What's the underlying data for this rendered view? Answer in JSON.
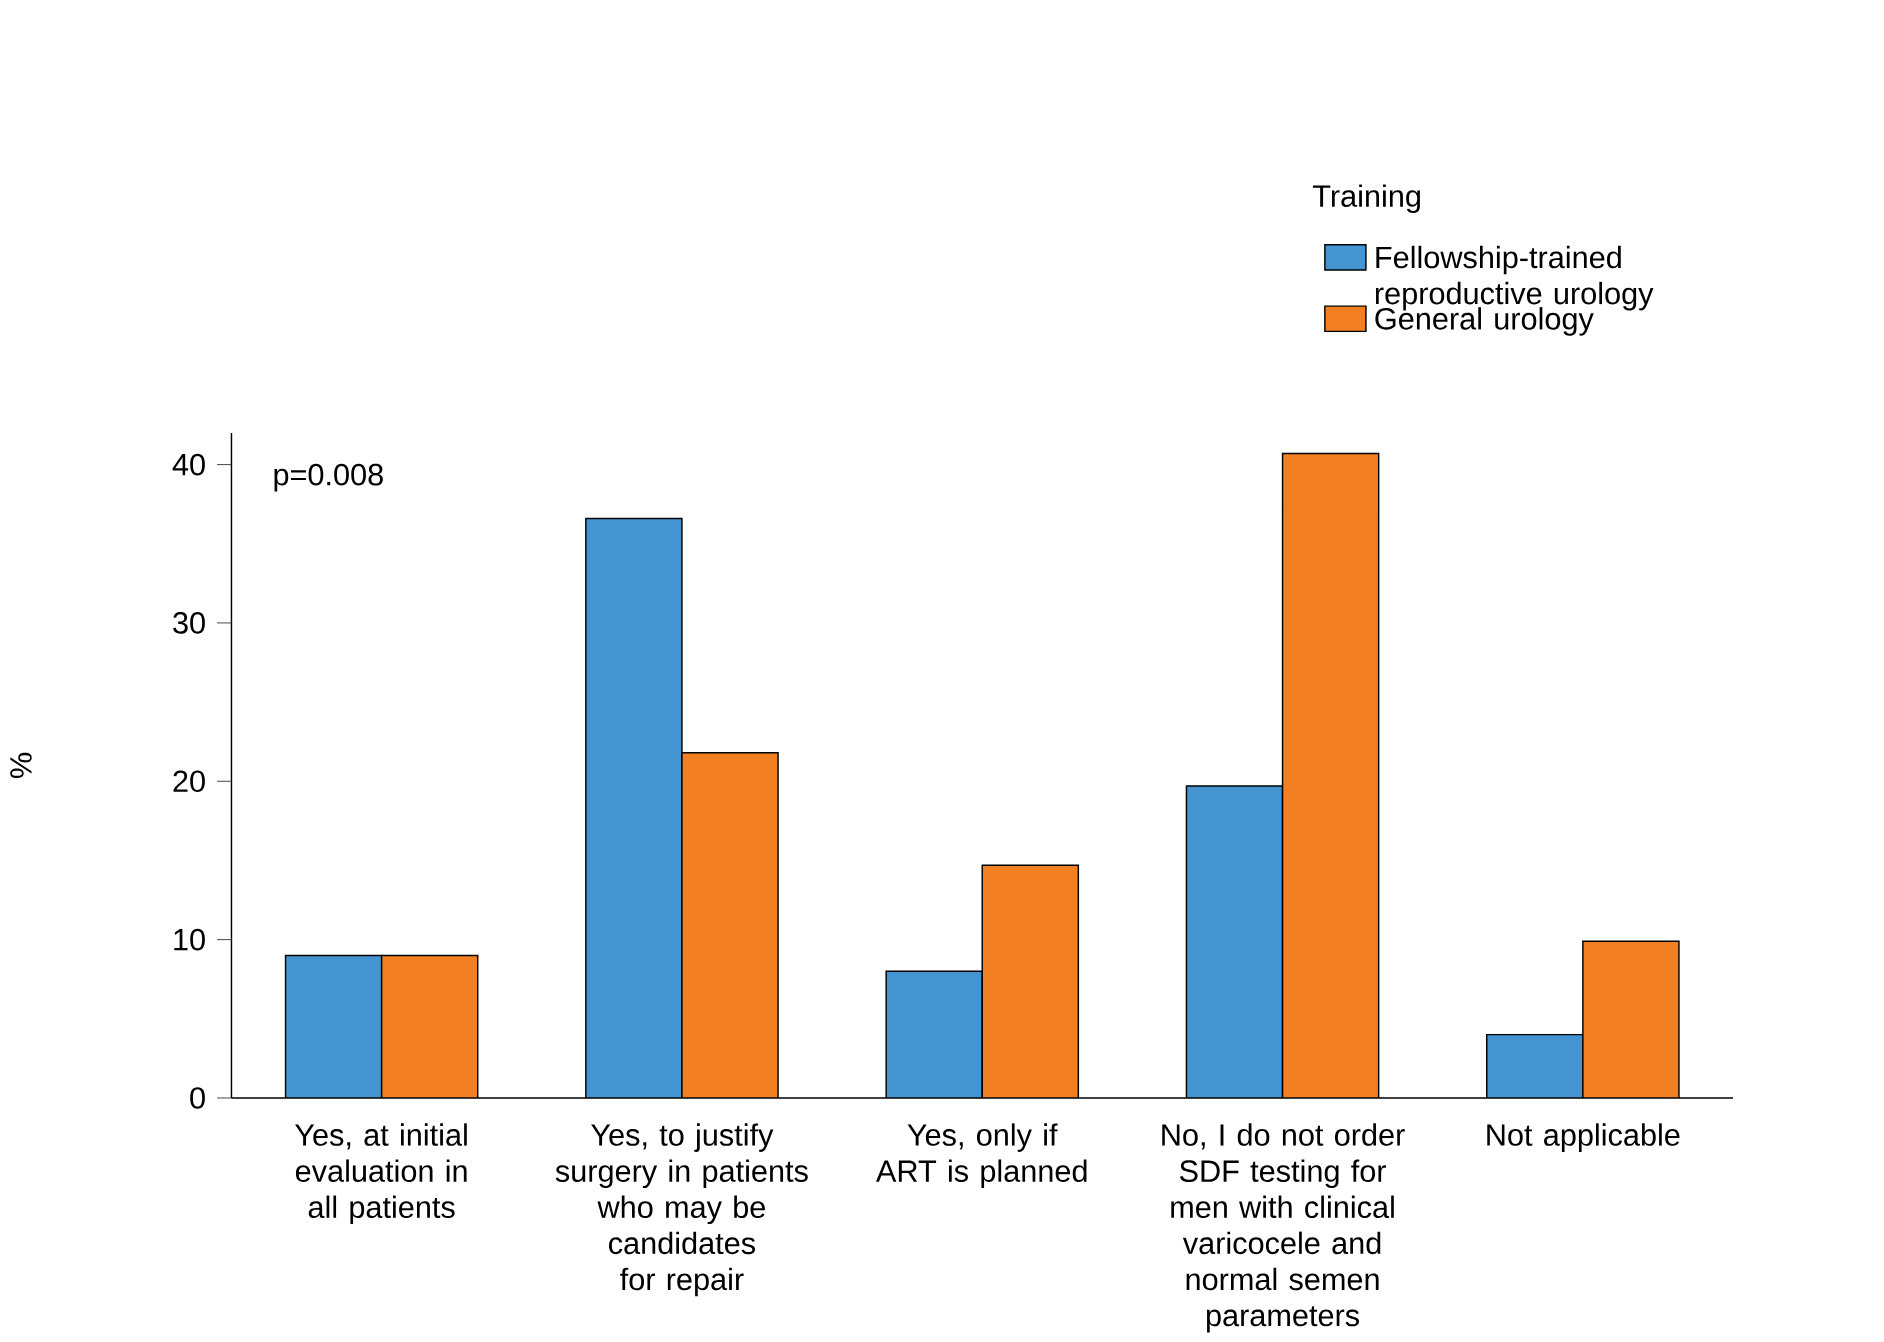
{
  "chart_data": {
    "type": "bar",
    "ylabel": "%",
    "legend_title": "Training",
    "legend": "top right",
    "annotations": [
      "p=0.008"
    ],
    "categories": [
      "Yes, at initial evaluation in all patients",
      "Yes, to justify surgery in patients who may be candidates for repair",
      "Yes, only if ART is planned",
      "No, I do not order SDF testing for men with clinical varicocele and normal semen parameters",
      "Not applicable"
    ],
    "series": [
      {
        "name": "Fellowship-trained reproductive urology",
        "color": "#4394d0",
        "values": [
          9,
          36.6,
          8,
          19.7,
          4
        ]
      },
      {
        "name": "General urology",
        "color": "#f28022",
        "values": [
          9,
          21.8,
          14.7,
          40.7,
          9.9
        ]
      }
    ],
    "ylim": [
      0,
      42
    ],
    "yticks": [
      0,
      10,
      20,
      30,
      40
    ]
  }
}
